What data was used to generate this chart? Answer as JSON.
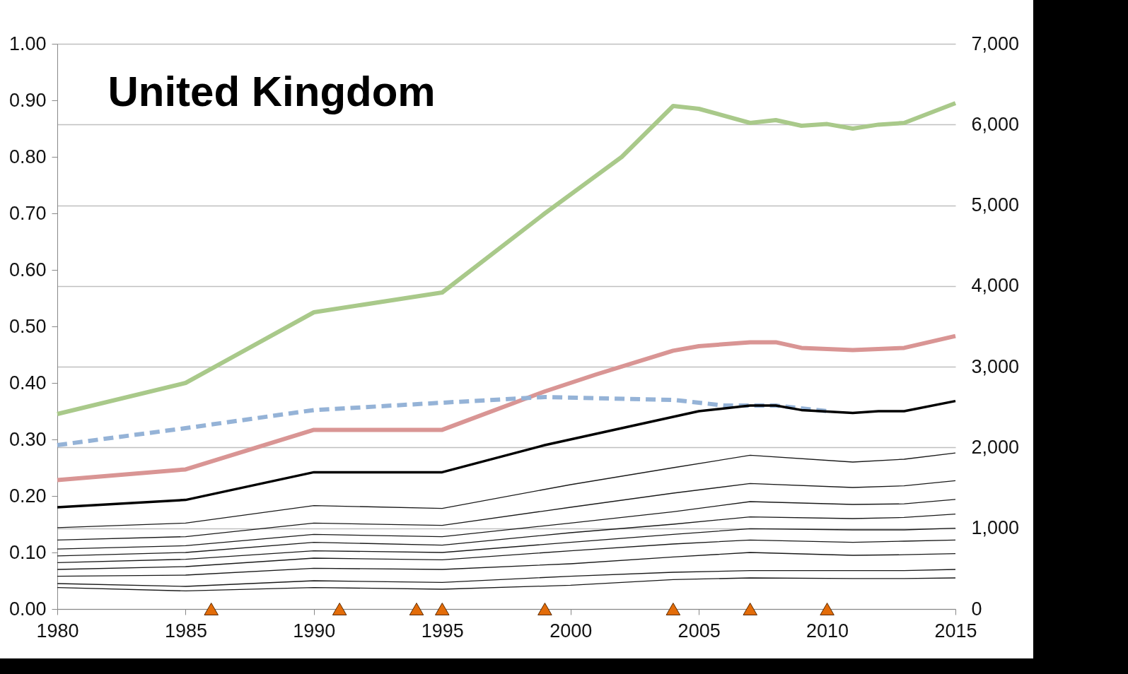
{
  "chart_data": {
    "type": "line",
    "title": "United Kingdom",
    "xlim": [
      1980,
      2015
    ],
    "xticks": [
      1980,
      1985,
      1990,
      1995,
      2000,
      2005,
      2010,
      2015
    ],
    "ylim": [
      0,
      1
    ],
    "yticks": [
      {
        "value": 0,
        "label": "0.00"
      },
      {
        "value": 0.1,
        "label": "0.10"
      },
      {
        "value": 0.2,
        "label": "0.20"
      },
      {
        "value": 0.3,
        "label": "0.30"
      },
      {
        "value": 0.4,
        "label": "0.40"
      },
      {
        "value": 0.5,
        "label": "0.50"
      },
      {
        "value": 0.6,
        "label": "0.60"
      },
      {
        "value": 0.7,
        "label": "0.70"
      },
      {
        "value": 0.8,
        "label": "0.80"
      },
      {
        "value": 0.9,
        "label": "0.90"
      },
      {
        "value": 1,
        "label": "1.00"
      }
    ],
    "y2lim": [
      0,
      7000
    ],
    "y2ticks": [
      0,
      {
        "value": 1000,
        "label": "1,000"
      },
      {
        "value": 2000,
        "label": "2,000"
      },
      {
        "value": 3000,
        "label": "3,000"
      },
      {
        "value": 4000,
        "label": "4,000"
      },
      {
        "value": 5000,
        "label": "5,000"
      },
      {
        "value": 6000,
        "label": "6,000"
      },
      {
        "value": 7000,
        "label": "7,000"
      }
    ],
    "grid": "y2",
    "series": [
      {
        "color": "#a9c98a",
        "x": [
          1980,
          1985,
          1990,
          1995,
          1999,
          2002,
          2004,
          2005,
          2007,
          2008,
          2009,
          2010,
          2011,
          2012,
          2013,
          2015
        ],
        "values": [
          0.345,
          0.4,
          0.525,
          0.56,
          0.7,
          0.8,
          0.89,
          0.885,
          0.86,
          0.865,
          0.855,
          0.858,
          0.85,
          0.857,
          0.86,
          0.895
        ]
      },
      {
        "color": "#d99594",
        "x": [
          1980,
          1985,
          1990,
          1995,
          1999,
          2001,
          2004,
          2005,
          2007,
          2008,
          2009,
          2011,
          2013,
          2015
        ],
        "values": [
          0.228,
          0.247,
          0.317,
          0.317,
          0.385,
          0.415,
          0.457,
          0.465,
          0.472,
          0.472,
          0.462,
          0.458,
          0.462,
          0.483
        ]
      },
      {
        "color": "#95b3d7",
        "line_style": "dashed",
        "x": [
          1980,
          1985,
          1990,
          1995,
          1999,
          2004,
          2006,
          2007,
          2008,
          2010
        ],
        "values": [
          0.29,
          0.32,
          0.352,
          0.365,
          0.375,
          0.37,
          0.36,
          0.36,
          0.36,
          0.35
        ]
      },
      {
        "color": "#000000",
        "x": [
          1980,
          1985,
          1990,
          1995,
          1999,
          2001,
          2004,
          2005,
          2007,
          2008,
          2009,
          2011,
          2012,
          2013,
          2015
        ],
        "values": [
          0.18,
          0.193,
          0.242,
          0.242,
          0.29,
          0.31,
          0.34,
          0.35,
          0.36,
          0.36,
          0.352,
          0.347,
          0.35,
          0.35,
          0.368
        ]
      },
      {
        "color": "#1a1a1a",
        "x": [
          1980,
          1985,
          1990,
          1995,
          2000,
          2004,
          2007,
          2011,
          2013,
          2015
        ],
        "values": [
          0.144,
          0.152,
          0.183,
          0.178,
          0.22,
          0.25,
          0.272,
          0.26,
          0.265,
          0.276
        ]
      },
      {
        "color": "#1a1a1a",
        "x": [
          1980,
          1985,
          1990,
          1995,
          2000,
          2004,
          2007,
          2011,
          2013,
          2015
        ],
        "values": [
          0.122,
          0.128,
          0.152,
          0.148,
          0.18,
          0.205,
          0.222,
          0.215,
          0.218,
          0.227
        ]
      },
      {
        "color": "#1a1a1a",
        "x": [
          1980,
          1985,
          1990,
          1995,
          2000,
          2004,
          2007,
          2011,
          2013,
          2015
        ],
        "values": [
          0.106,
          0.112,
          0.132,
          0.128,
          0.152,
          0.172,
          0.19,
          0.185,
          0.186,
          0.194
        ]
      },
      {
        "color": "#1a1a1a",
        "x": [
          1980,
          1985,
          1990,
          1995,
          2000,
          2004,
          2007,
          2011,
          2013,
          2015
        ],
        "values": [
          0.094,
          0.1,
          0.118,
          0.113,
          0.135,
          0.15,
          0.163,
          0.16,
          0.162,
          0.168
        ]
      },
      {
        "color": "#1a1a1a",
        "x": [
          1980,
          1985,
          1990,
          1995,
          2000,
          2004,
          2007,
          2011,
          2013,
          2015
        ],
        "values": [
          0.082,
          0.088,
          0.103,
          0.1,
          0.118,
          0.132,
          0.142,
          0.14,
          0.14,
          0.143
        ]
      },
      {
        "color": "#1a1a1a",
        "x": [
          1980,
          1985,
          1990,
          1995,
          2000,
          2004,
          2007,
          2011,
          2013,
          2015
        ],
        "values": [
          0.07,
          0.075,
          0.09,
          0.087,
          0.103,
          0.115,
          0.122,
          0.118,
          0.12,
          0.122
        ]
      },
      {
        "color": "#1a1a1a",
        "x": [
          1980,
          1985,
          1990,
          1995,
          2000,
          2004,
          2007,
          2011,
          2013,
          2015
        ],
        "values": [
          0.058,
          0.06,
          0.072,
          0.07,
          0.08,
          0.092,
          0.1,
          0.095,
          0.096,
          0.098
        ]
      },
      {
        "color": "#1a1a1a",
        "x": [
          1980,
          1985,
          1990,
          1995,
          2000,
          2004,
          2007,
          2011,
          2013,
          2015
        ],
        "values": [
          0.045,
          0.04,
          0.05,
          0.047,
          0.058,
          0.065,
          0.068,
          0.068,
          0.068,
          0.07
        ]
      },
      {
        "color": "#1a1a1a",
        "x": [
          1980,
          1985,
          1990,
          1995,
          2000,
          2004,
          2007,
          2011,
          2013,
          2015
        ],
        "values": [
          0.038,
          0.032,
          0.038,
          0.035,
          0.042,
          0.052,
          0.055,
          0.054,
          0.054,
          0.055
        ]
      },
      {
        "type": "scatter",
        "marker": "triangle",
        "color": "#e36c09",
        "x": [
          1986,
          1991,
          1994,
          1995,
          1999,
          2004,
          2007,
          2010
        ],
        "values": [
          0,
          0,
          0,
          0,
          0,
          0,
          0,
          0
        ]
      }
    ]
  }
}
